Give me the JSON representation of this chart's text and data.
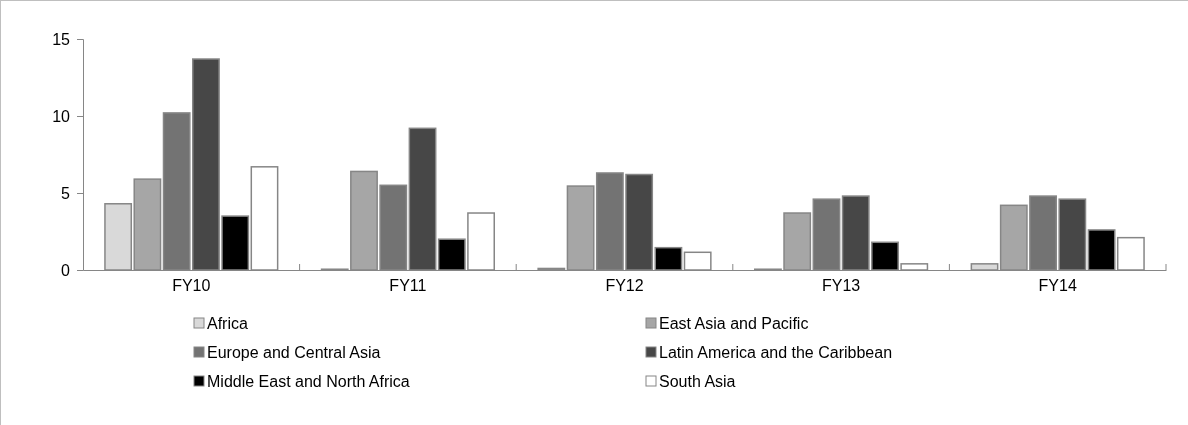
{
  "chart_data": {
    "type": "bar",
    "categories": [
      "FY10",
      "FY11",
      "FY12",
      "FY13",
      "FY14"
    ],
    "series": [
      {
        "name": "Africa",
        "color": "#d9d9d9",
        "values": [
          4.3,
          0.05,
          0.1,
          0.05,
          0.4
        ]
      },
      {
        "name": "East Asia and Pacific",
        "color": "#a6a6a6",
        "values": [
          5.9,
          6.4,
          5.45,
          3.7,
          4.2
        ]
      },
      {
        "name": "Europe and Central Asia",
        "color": "#737373",
        "values": [
          10.2,
          5.5,
          6.3,
          4.6,
          4.8
        ]
      },
      {
        "name": "Latin America and the Caribbean",
        "color": "#474747",
        "values": [
          13.7,
          9.2,
          6.2,
          4.8,
          4.6
        ]
      },
      {
        "name": "Middle East and North Africa",
        "color": "#000000",
        "values": [
          3.5,
          2.0,
          1.45,
          1.8,
          2.6
        ]
      },
      {
        "name": "South Asia",
        "color": "#ffffff",
        "values": [
          6.7,
          3.7,
          1.15,
          0.4,
          2.1
        ]
      }
    ],
    "ylim": [
      0,
      15
    ],
    "yticks": [
      0,
      5,
      10,
      15
    ],
    "grid": false,
    "legend": "bottom"
  }
}
